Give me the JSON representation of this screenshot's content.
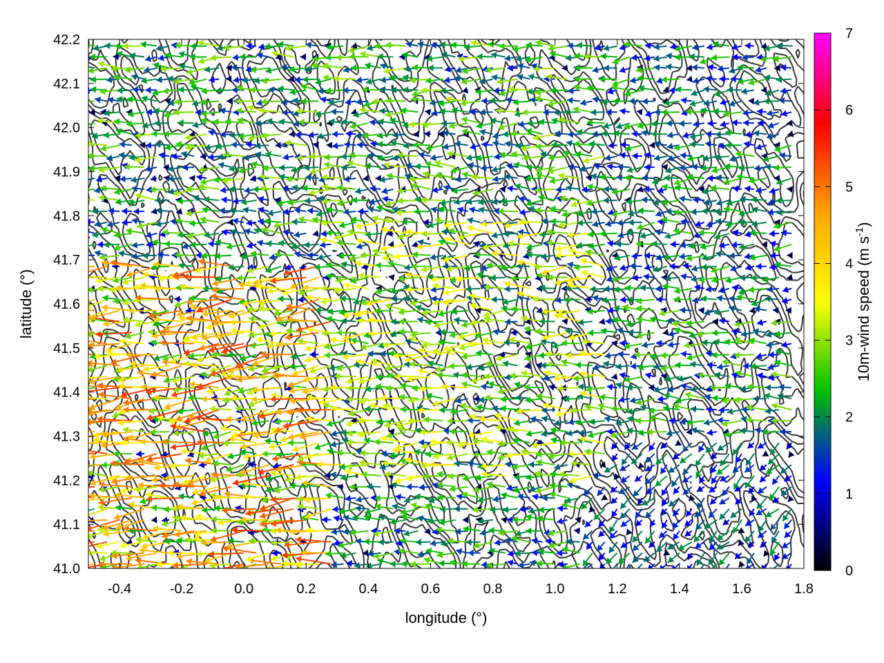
{
  "chart_data": {
    "type": "vector-field",
    "xlabel": "longitude (°)",
    "ylabel": "latitude (°)",
    "xlim": [
      -0.5,
      1.8
    ],
    "ylim": [
      41.0,
      42.2
    ],
    "x_ticks": [
      "-0.4",
      "-0.2",
      "0.0",
      "0.2",
      "0.4",
      "0.6",
      "0.8",
      "1.0",
      "1.2",
      "1.4",
      "1.6",
      "1.8"
    ],
    "y_ticks": [
      "41.0",
      "41.1",
      "41.2",
      "41.3",
      "41.4",
      "41.5",
      "41.6",
      "41.7",
      "41.8",
      "41.9",
      "42.0",
      "42.1",
      "42.2"
    ],
    "grid": true,
    "colorbar": {
      "label_main": "10m-wind speed (m s",
      "label_exp": "-1",
      "label_close": ")",
      "range": [
        0,
        7
      ],
      "ticks": [
        "0",
        "1",
        "2",
        "3",
        "4",
        "5",
        "6",
        "7"
      ],
      "colors": [
        "#000000",
        "#0000ff",
        "#00c000",
        "#ffff00",
        "#ffa500",
        "#ff0000",
        "#ff00ff"
      ]
    },
    "contour_color": "#333333",
    "vectors": {
      "lon_start": -0.48,
      "lon_step": 0.04,
      "lat_start": 41.01,
      "lat_step": 0.025,
      "regions": [
        {
          "lon": [
            -0.5,
            0.3
          ],
          "lat": [
            41.0,
            41.7
          ],
          "speed": 3.8,
          "dir_deg": 185
        },
        {
          "lon": [
            0.3,
            1.2
          ],
          "lat": [
            41.2,
            41.8
          ],
          "speed": 2.7,
          "dir_deg": 180
        },
        {
          "lon": [
            1.2,
            1.8
          ],
          "lat": [
            41.6,
            42.2
          ],
          "speed": 1.8,
          "dir_deg": 185
        },
        {
          "lon": [
            1.1,
            1.8
          ],
          "lat": [
            41.0,
            41.3
          ],
          "speed": 1.5,
          "dir_deg": 225
        },
        {
          "lon": [
            -0.5,
            1.8
          ],
          "lat": [
            41.8,
            42.2
          ],
          "speed": 2.2,
          "dir_deg": 180
        }
      ]
    }
  }
}
